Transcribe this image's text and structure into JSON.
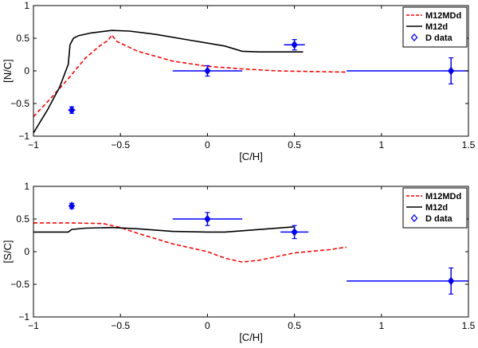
{
  "colors": {
    "model_dashed": "#ff0000",
    "model_solid": "#000000",
    "data_points": "#0000ff"
  },
  "chart_data": [
    {
      "type": "line",
      "xlabel": "[C/H]",
      "ylabel": "[N/C]",
      "xlim": [
        -1,
        1.5
      ],
      "ylim": [
        -1,
        1
      ],
      "xticks": [
        -1,
        -0.5,
        0,
        0.5,
        1,
        1.5
      ],
      "xtick_labels": [
        "−1",
        "−0.5",
        "0",
        "0.5",
        "1",
        "1.5"
      ],
      "yticks": [
        -1,
        -0.5,
        0,
        0.5,
        1
      ],
      "ytick_labels": [
        "−1",
        "−0.5",
        "0",
        "0.5",
        "1"
      ],
      "legend": [
        {
          "label": "M12MDd",
          "style": "dashed-red"
        },
        {
          "label": "M12d",
          "style": "solid-black"
        },
        {
          "label": "D data",
          "style": "diamond-blue"
        }
      ],
      "series": [
        {
          "name": "M12MDd",
          "style": "dashed-red",
          "points": [
            [
              -1,
              -0.7
            ],
            [
              -0.9,
              -0.42
            ],
            [
              -0.8,
              -0.12
            ],
            [
              -0.7,
              0.2
            ],
            [
              -0.62,
              0.38
            ],
            [
              -0.57,
              0.47
            ],
            [
              -0.55,
              0.55
            ],
            [
              -0.52,
              0.45
            ],
            [
              -0.4,
              0.3
            ],
            [
              -0.2,
              0.15
            ],
            [
              0,
              0.07
            ],
            [
              0.2,
              0.03
            ],
            [
              0.4,
              0.0
            ],
            [
              0.6,
              -0.01
            ],
            [
              0.8,
              -0.02
            ]
          ]
        },
        {
          "name": "M12d",
          "style": "solid-black",
          "points": [
            [
              -1,
              -0.95
            ],
            [
              -0.92,
              -0.6
            ],
            [
              -0.85,
              -0.25
            ],
            [
              -0.8,
              0.1
            ],
            [
              -0.79,
              0.4
            ],
            [
              -0.77,
              0.5
            ],
            [
              -0.74,
              0.54
            ],
            [
              -0.67,
              0.58
            ],
            [
              -0.55,
              0.62
            ],
            [
              -0.45,
              0.61
            ],
            [
              -0.3,
              0.56
            ],
            [
              -0.1,
              0.47
            ],
            [
              0.1,
              0.38
            ],
            [
              0.2,
              0.3
            ],
            [
              0.3,
              0.29
            ],
            [
              0.5,
              0.29
            ],
            [
              0.55,
              0.29
            ]
          ]
        }
      ],
      "data_points": [
        {
          "x": -0.78,
          "y": -0.6,
          "xerr": 0.02,
          "yerr": 0.05
        },
        {
          "x": 0.0,
          "y": 0.0,
          "xerr": 0.2,
          "yerr": 0.08
        },
        {
          "x": 0.5,
          "y": 0.4,
          "xerr": 0.06,
          "yerr": 0.08
        },
        {
          "x": 1.4,
          "y": 0.0,
          "xerr": 0.6,
          "yerr": 0.2
        }
      ]
    },
    {
      "type": "line",
      "xlabel": "[C/H]",
      "ylabel": "[S/C]",
      "xlim": [
        -1,
        1.5
      ],
      "ylim": [
        -1,
        1
      ],
      "xticks": [
        -1,
        -0.5,
        0,
        0.5,
        1,
        1.5
      ],
      "xtick_labels": [
        "−1",
        "−0.5",
        "0",
        "0.5",
        "1",
        "1.5"
      ],
      "yticks": [
        -1,
        -0.5,
        0,
        0.5,
        1
      ],
      "ytick_labels": [
        "−1",
        "−0.5",
        "0",
        "0.5",
        "1"
      ],
      "legend": [
        {
          "label": "M12MDd",
          "style": "dashed-red"
        },
        {
          "label": "M12d",
          "style": "solid-black"
        },
        {
          "label": "D data",
          "style": "diamond-blue"
        }
      ],
      "series": [
        {
          "name": "M12MDd",
          "style": "dashed-red",
          "points": [
            [
              -1,
              0.44
            ],
            [
              -0.8,
              0.44
            ],
            [
              -0.6,
              0.43
            ],
            [
              -0.5,
              0.37
            ],
            [
              -0.4,
              0.28
            ],
            [
              -0.2,
              0.12
            ],
            [
              0,
              0.0
            ],
            [
              0.1,
              -0.1
            ],
            [
              0.2,
              -0.16
            ],
            [
              0.3,
              -0.13
            ],
            [
              0.5,
              -0.02
            ],
            [
              0.7,
              0.03
            ],
            [
              0.8,
              0.07
            ]
          ]
        },
        {
          "name": "M12d",
          "style": "solid-black",
          "points": [
            [
              -1,
              0.3
            ],
            [
              -0.8,
              0.3
            ],
            [
              -0.78,
              0.34
            ],
            [
              -0.7,
              0.36
            ],
            [
              -0.55,
              0.37
            ],
            [
              -0.4,
              0.35
            ],
            [
              -0.2,
              0.31
            ],
            [
              0,
              0.3
            ],
            [
              0.1,
              0.3
            ],
            [
              0.2,
              0.32
            ],
            [
              0.35,
              0.35
            ],
            [
              0.5,
              0.38
            ]
          ]
        }
      ],
      "data_points": [
        {
          "x": -0.78,
          "y": 0.7,
          "xerr": 0.01,
          "yerr": 0.04
        },
        {
          "x": 0.0,
          "y": 0.5,
          "xerr": 0.2,
          "yerr": 0.1
        },
        {
          "x": 0.5,
          "y": 0.3,
          "xerr": 0.08,
          "yerr": 0.1
        },
        {
          "x": 1.4,
          "y": -0.45,
          "xerr": 0.6,
          "yerr": 0.2
        }
      ]
    }
  ]
}
